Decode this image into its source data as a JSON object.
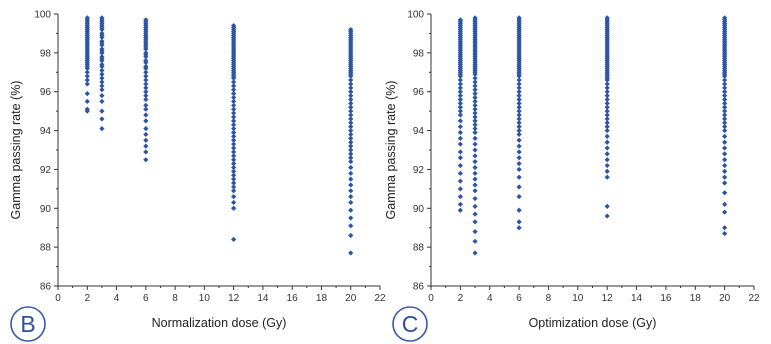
{
  "colors": {
    "points": "#2d55a4",
    "axis": "#333333",
    "badge": "#3a5aa8"
  },
  "chart_data": [
    {
      "type": "scatter",
      "panel_label": "B",
      "xlabel": "Normalization dose (Gy)",
      "ylabel": "Gamma passing rate (%)",
      "xlim": [
        0,
        22
      ],
      "ylim": [
        86,
        100
      ],
      "xticks": [
        "0",
        "2",
        "4",
        "6",
        "8",
        "10",
        "12",
        "14",
        "16",
        "18",
        "20",
        "22"
      ],
      "yticks": [
        "86",
        "88",
        "90",
        "92",
        "94",
        "96",
        "98",
        "100"
      ],
      "grid": false,
      "series": [
        {
          "x": 2,
          "y": [
            99.8,
            99.7,
            99.6,
            99.5,
            99.4,
            99.3,
            99.2,
            99.1,
            99.0,
            98.9,
            98.8,
            98.7,
            98.6,
            98.5,
            98.4,
            98.3,
            98.2,
            98.1,
            98.0,
            97.9,
            97.8,
            97.7,
            97.6,
            97.5,
            97.4,
            97.3,
            97.2,
            97.0,
            96.8,
            96.6,
            96.4,
            95.9,
            95.5,
            95.1,
            95.0
          ]
        },
        {
          "x": 3,
          "y": [
            99.8,
            99.7,
            99.6,
            99.5,
            99.4,
            99.3,
            99.2,
            99.0,
            98.9,
            98.8,
            98.6,
            98.5,
            98.4,
            98.2,
            98.1,
            98.0,
            97.8,
            97.7,
            97.6,
            97.4,
            97.3,
            97.1,
            96.9,
            96.7,
            96.5,
            96.3,
            96.1,
            95.8,
            95.5,
            95.0,
            94.6,
            94.1
          ]
        },
        {
          "x": 6,
          "y": [
            99.7,
            99.6,
            99.5,
            99.4,
            99.3,
            99.2,
            99.1,
            99.0,
            98.9,
            98.8,
            98.7,
            98.6,
            98.5,
            98.4,
            98.3,
            98.2,
            98.0,
            97.9,
            97.8,
            97.6,
            97.5,
            97.3,
            97.2,
            97.0,
            96.8,
            96.6,
            96.4,
            96.2,
            96.0,
            95.8,
            95.6,
            95.3,
            95.1,
            94.8,
            94.5,
            94.1,
            93.8,
            93.5,
            93.2,
            92.9,
            92.5
          ]
        },
        {
          "x": 12,
          "y": [
            99.4,
            99.3,
            99.2,
            99.1,
            99.0,
            98.9,
            98.8,
            98.7,
            98.6,
            98.5,
            98.4,
            98.3,
            98.2,
            98.1,
            98.0,
            97.9,
            97.8,
            97.7,
            97.6,
            97.5,
            97.4,
            97.3,
            97.2,
            97.1,
            97.0,
            96.9,
            96.8,
            96.7,
            96.5,
            96.3,
            96.1,
            95.9,
            95.7,
            95.5,
            95.3,
            95.1,
            94.9,
            94.7,
            94.5,
            94.3,
            94.1,
            93.9,
            93.7,
            93.5,
            93.3,
            93.1,
            92.9,
            92.7,
            92.5,
            92.3,
            92.1,
            91.9,
            91.7,
            91.5,
            91.3,
            91.1,
            90.9,
            90.6,
            90.3,
            90.0,
            88.4
          ]
        },
        {
          "x": 20,
          "y": [
            99.2,
            99.1,
            99.0,
            98.9,
            98.8,
            98.7,
            98.6,
            98.5,
            98.4,
            98.3,
            98.2,
            98.1,
            98.0,
            97.9,
            97.8,
            97.7,
            97.6,
            97.5,
            97.4,
            97.3,
            97.2,
            97.1,
            97.0,
            96.9,
            96.8,
            96.6,
            96.4,
            96.2,
            96.0,
            95.8,
            95.6,
            95.4,
            95.2,
            95.0,
            94.8,
            94.6,
            94.4,
            94.2,
            94.0,
            93.8,
            93.6,
            93.4,
            93.2,
            93.0,
            92.8,
            92.6,
            92.4,
            92.1,
            91.8,
            91.5,
            91.2,
            90.9,
            90.6,
            90.3,
            89.9,
            89.5,
            89.1,
            88.6,
            87.7
          ]
        }
      ]
    },
    {
      "type": "scatter",
      "panel_label": "C",
      "xlabel": "Optimization dose (Gy)",
      "ylabel": "Gamma passing rate (%)",
      "xlim": [
        0,
        22
      ],
      "ylim": [
        86,
        100
      ],
      "xticks": [
        "0",
        "2",
        "4",
        "6",
        "8",
        "10",
        "12",
        "14",
        "16",
        "18",
        "20",
        "22"
      ],
      "yticks": [
        "86",
        "88",
        "90",
        "92",
        "94",
        "96",
        "98",
        "100"
      ],
      "grid": false,
      "series": [
        {
          "x": 2,
          "y": [
            99.7,
            99.6,
            99.5,
            99.4,
            99.3,
            99.2,
            99.1,
            99.0,
            98.9,
            98.8,
            98.7,
            98.6,
            98.5,
            98.4,
            98.3,
            98.2,
            98.1,
            98.0,
            97.9,
            97.8,
            97.7,
            97.6,
            97.5,
            97.4,
            97.3,
            97.2,
            97.1,
            97.0,
            96.9,
            96.8,
            96.6,
            96.4,
            96.2,
            96.0,
            95.8,
            95.6,
            95.4,
            95.2,
            95.0,
            94.8,
            94.5,
            94.2,
            93.9,
            93.6,
            93.3,
            92.9,
            92.6,
            92.2,
            91.8,
            91.4,
            91.0,
            90.6,
            90.2,
            89.9
          ]
        },
        {
          "x": 3,
          "y": [
            99.8,
            99.7,
            99.6,
            99.5,
            99.4,
            99.3,
            99.2,
            99.1,
            99.0,
            98.9,
            98.8,
            98.7,
            98.6,
            98.5,
            98.4,
            98.3,
            98.2,
            98.1,
            98.0,
            97.9,
            97.8,
            97.7,
            97.6,
            97.5,
            97.4,
            97.3,
            97.2,
            97.1,
            97.0,
            96.9,
            96.7,
            96.5,
            96.3,
            96.1,
            95.9,
            95.7,
            95.5,
            95.3,
            95.1,
            94.9,
            94.7,
            94.5,
            94.3,
            94.1,
            93.9,
            93.6,
            93.3,
            93.0,
            92.7,
            92.4,
            92.1,
            91.8,
            91.5,
            91.2,
            90.9,
            90.5,
            90.1,
            89.7,
            89.3,
            88.8,
            88.3,
            87.7
          ]
        },
        {
          "x": 6,
          "y": [
            99.8,
            99.7,
            99.6,
            99.5,
            99.4,
            99.3,
            99.2,
            99.1,
            99.0,
            98.9,
            98.8,
            98.7,
            98.6,
            98.5,
            98.4,
            98.3,
            98.2,
            98.1,
            98.0,
            97.9,
            97.8,
            97.7,
            97.6,
            97.5,
            97.4,
            97.3,
            97.2,
            97.1,
            97.0,
            96.9,
            96.8,
            96.6,
            96.4,
            96.2,
            96.0,
            95.8,
            95.6,
            95.4,
            95.2,
            95.0,
            94.8,
            94.6,
            94.4,
            94.2,
            94.0,
            93.8,
            93.5,
            93.2,
            92.9,
            92.6,
            92.3,
            92.0,
            91.6,
            91.1,
            90.6,
            89.9,
            89.3,
            89.0
          ]
        },
        {
          "x": 12,
          "y": [
            99.8,
            99.7,
            99.6,
            99.5,
            99.4,
            99.3,
            99.2,
            99.1,
            99.0,
            98.9,
            98.8,
            98.7,
            98.6,
            98.5,
            98.4,
            98.3,
            98.2,
            98.1,
            98.0,
            97.9,
            97.8,
            97.7,
            97.6,
            97.5,
            97.4,
            97.3,
            97.2,
            97.1,
            97.0,
            96.9,
            96.8,
            96.7,
            96.6,
            96.4,
            96.2,
            96.0,
            95.8,
            95.6,
            95.4,
            95.2,
            95.0,
            94.8,
            94.6,
            94.4,
            94.2,
            94.0,
            93.7,
            93.4,
            93.1,
            92.8,
            92.5,
            92.2,
            91.9,
            91.6,
            90.1,
            89.6
          ]
        },
        {
          "x": 20,
          "y": [
            99.8,
            99.7,
            99.6,
            99.5,
            99.4,
            99.3,
            99.2,
            99.1,
            99.0,
            98.9,
            98.8,
            98.7,
            98.6,
            98.5,
            98.4,
            98.3,
            98.2,
            98.1,
            98.0,
            97.9,
            97.8,
            97.7,
            97.6,
            97.5,
            97.4,
            97.3,
            97.2,
            97.1,
            97.0,
            96.9,
            96.8,
            96.6,
            96.4,
            96.2,
            96.0,
            95.8,
            95.6,
            95.4,
            95.2,
            95.0,
            94.8,
            94.6,
            94.4,
            94.2,
            94.0,
            93.7,
            93.4,
            93.1,
            92.8,
            92.5,
            92.2,
            91.9,
            91.6,
            91.3,
            90.8,
            90.2,
            89.8,
            89.0,
            88.7
          ]
        }
      ]
    }
  ]
}
